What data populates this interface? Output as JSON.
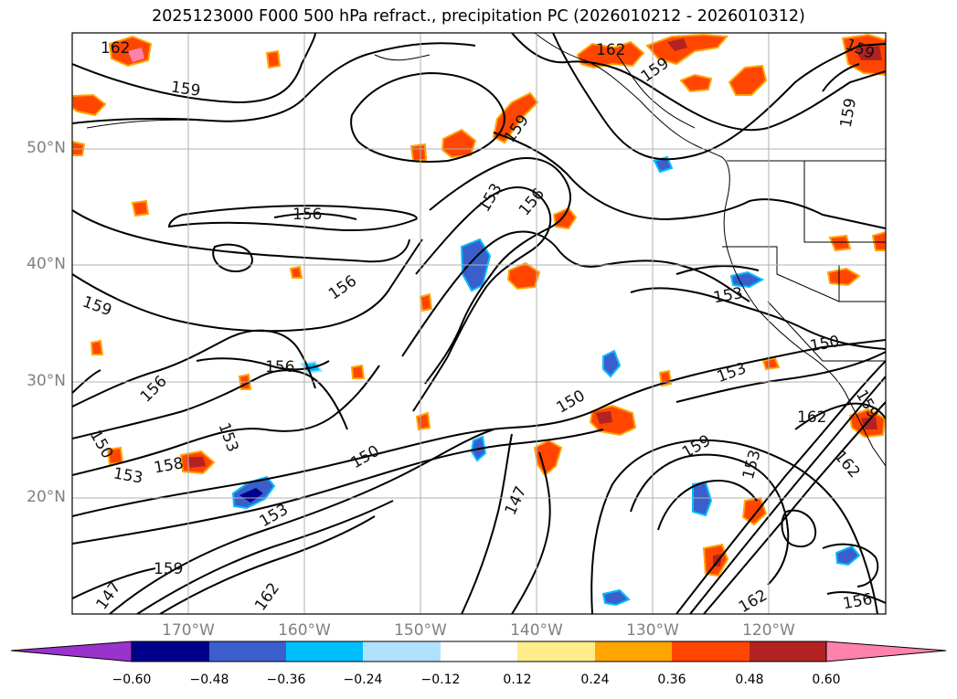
{
  "title": "2025123000 F000 500 hPa refract., precipitation PC (2026010212 - 2026010312)",
  "map": {
    "lat_labels": [
      "50°N",
      "40°N",
      "30°N",
      "20°N"
    ],
    "lon_labels": [
      "170°W",
      "160°W",
      "150°W",
      "140°W",
      "130°W",
      "120°W"
    ],
    "contour_labels": [
      {
        "text": "162"
      },
      {
        "text": "159"
      },
      {
        "text": "162"
      },
      {
        "text": "159"
      },
      {
        "text": "159"
      },
      {
        "text": "159"
      },
      {
        "text": "159"
      },
      {
        "text": "153"
      },
      {
        "text": "156"
      },
      {
        "text": "156"
      },
      {
        "text": "156"
      },
      {
        "text": "159"
      },
      {
        "text": "153"
      },
      {
        "text": "156"
      },
      {
        "text": "150"
      },
      {
        "text": "153"
      },
      {
        "text": "150"
      },
      {
        "text": "156"
      },
      {
        "text": "153"
      },
      {
        "text": "150"
      },
      {
        "text": "153"
      },
      {
        "text": "158"
      },
      {
        "text": "150"
      },
      {
        "text": "153"
      },
      {
        "text": "147"
      },
      {
        "text": "159"
      },
      {
        "text": "153"
      },
      {
        "text": "162"
      },
      {
        "text": "162"
      },
      {
        "text": "159"
      },
      {
        "text": "147"
      },
      {
        "text": "162"
      },
      {
        "text": "162"
      },
      {
        "text": "156"
      },
      {
        "text": "159"
      }
    ]
  },
  "colorbar": {
    "colors": [
      "#9a32cd",
      "#00008b",
      "#3a5fcd",
      "#00bfff",
      "#b0e2ff",
      "#ffffff",
      "#ffec8b",
      "#ffa500",
      "#ff4500",
      "#b22222",
      "#ff82ab"
    ],
    "tick_labels": [
      "−0.60",
      "−0.48",
      "−0.36",
      "−0.24",
      "−0.12",
      "0.12",
      "0.24",
      "0.36",
      "0.48",
      "0.60"
    ]
  }
}
